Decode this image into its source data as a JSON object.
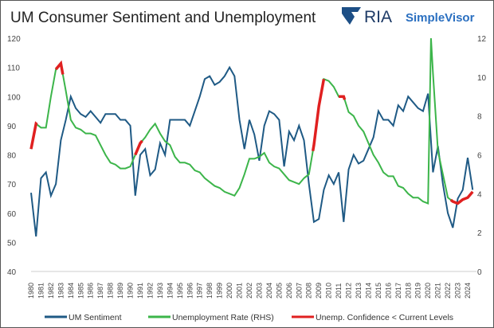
{
  "chart_data": {
    "type": "line",
    "title": "UM Consumer Sentiment and Unemployment",
    "logo": {
      "brand": "RIA",
      "product": "SimpleVisor"
    },
    "left_axis": {
      "ylim": [
        40,
        120
      ],
      "ticks": [
        40,
        50,
        60,
        70,
        80,
        90,
        100,
        110,
        120
      ]
    },
    "right_axis": {
      "ylim": [
        0,
        12
      ],
      "ticks": [
        0,
        2,
        4,
        6,
        8,
        10,
        12
      ]
    },
    "x_ticks": [
      "1980",
      "1981",
      "1982",
      "1983",
      "1984",
      "1985",
      "1986",
      "1987",
      "1988",
      "1989",
      "1990",
      "1991",
      "1992",
      "1993",
      "1994",
      "1995",
      "1996",
      "1997",
      "1998",
      "1999",
      "2000",
      "2001",
      "2002",
      "2003",
      "2004",
      "2005",
      "2006",
      "2007",
      "2008",
      "2009",
      "2010",
      "2011",
      "2012",
      "2013",
      "2014",
      "2015",
      "2016",
      "2017",
      "2018",
      "2019",
      "2020",
      "2021",
      "2022",
      "2023",
      "2024"
    ],
    "legend_position": "bottom",
    "series": [
      {
        "name": "UM Sentiment",
        "axis": "left",
        "color": "#1f5a85",
        "x_start": 1980,
        "step": 0.5,
        "values": [
          67,
          52,
          72,
          74,
          66,
          70,
          85,
          92,
          100,
          96,
          94,
          93,
          95,
          93,
          91,
          94,
          94,
          94,
          92,
          92,
          90,
          66,
          80,
          82,
          73,
          75,
          84,
          80,
          92,
          92,
          92,
          92,
          90,
          95,
          100,
          106,
          107,
          104,
          105,
          107,
          110,
          107,
          92,
          82,
          92,
          87,
          78,
          90,
          95,
          94,
          92,
          76,
          88,
          85,
          90,
          85,
          70,
          57,
          58,
          68,
          73,
          70,
          74,
          57,
          75,
          80,
          77,
          78,
          82,
          86,
          95,
          92,
          92,
          90,
          97,
          95,
          100,
          98,
          96,
          95,
          101,
          74,
          83,
          70,
          60,
          55,
          65,
          68,
          79,
          68
        ]
      },
      {
        "name": "Unemployment Rate (RHS)",
        "axis": "right",
        "color": "#3cb54a",
        "x": [
          1980,
          1980.5,
          1981,
          1981.5,
          1982,
          1982.5,
          1983,
          1983.5,
          1984,
          1984.5,
          1985,
          1985.5,
          1986,
          1986.5,
          1987,
          1987.5,
          1988,
          1988.5,
          1989,
          1989.5,
          1990,
          1990.5,
          1991,
          1991.5,
          1992,
          1992.5,
          1993,
          1993.5,
          1994,
          1994.5,
          1995,
          1995.5,
          1996,
          1996.5,
          1997,
          1997.5,
          1998,
          1998.5,
          1999,
          1999.5,
          2000,
          2000.5,
          2001,
          2001.5,
          2002,
          2002.5,
          2003,
          2003.5,
          2004,
          2004.5,
          2005,
          2005.5,
          2006,
          2006.5,
          2007,
          2007.5,
          2008,
          2008.5,
          2009,
          2009.5,
          2010,
          2010.5,
          2011,
          2011.5,
          2012,
          2012.5,
          2013,
          2013.5,
          2014,
          2014.5,
          2015,
          2015.5,
          2016,
          2016.5,
          2017,
          2017.5,
          2018,
          2018.5,
          2019,
          2019.5,
          2020,
          2020.3,
          2020.5,
          2021,
          2021.5,
          2022,
          2022.5,
          2023,
          2023.5,
          2024,
          2024.5
        ],
        "values": [
          6.3,
          7.6,
          7.4,
          7.4,
          9.0,
          10.4,
          10.7,
          9.3,
          7.8,
          7.4,
          7.3,
          7.1,
          7.1,
          7.0,
          6.5,
          6.0,
          5.6,
          5.5,
          5.3,
          5.3,
          5.4,
          6.0,
          6.6,
          6.9,
          7.3,
          7.6,
          7.1,
          6.7,
          6.5,
          5.9,
          5.6,
          5.6,
          5.5,
          5.2,
          5.1,
          4.8,
          4.6,
          4.4,
          4.3,
          4.1,
          4.0,
          3.9,
          4.3,
          5.0,
          5.8,
          5.8,
          5.9,
          6.1,
          5.6,
          5.4,
          5.3,
          5.0,
          4.7,
          4.6,
          4.5,
          4.8,
          5.0,
          6.5,
          8.5,
          9.9,
          9.8,
          9.5,
          9.0,
          9.0,
          8.2,
          8.0,
          7.5,
          7.2,
          6.6,
          6.0,
          5.6,
          5.1,
          4.9,
          4.9,
          4.4,
          4.3,
          4.0,
          3.8,
          3.8,
          3.6,
          3.5,
          12.0,
          10.2,
          6.2,
          5.0,
          3.8,
          3.6,
          3.5,
          3.7,
          3.8,
          4.1
        ]
      },
      {
        "name": "Unemp. Confidence < Current Levels",
        "axis": "right",
        "color": "#e02020",
        "ranges": [
          [
            1980,
            1980.6
          ],
          [
            1982.5,
            1983.2
          ],
          [
            1990.5,
            1991.2
          ],
          [
            2008.4,
            2009.5
          ],
          [
            2011,
            2011.6
          ],
          [
            2022.3,
            2024.5
          ]
        ]
      }
    ]
  }
}
